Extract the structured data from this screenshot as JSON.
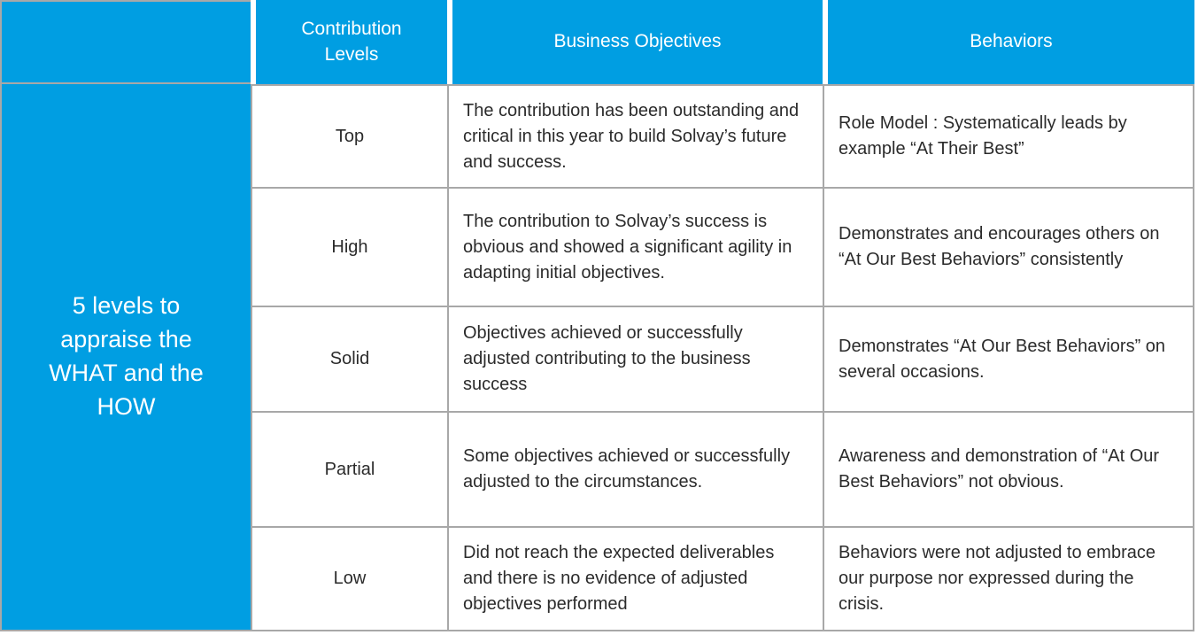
{
  "colors": {
    "header_blue": "#009ee2",
    "border_grey": "#a8a8a8",
    "body_text": "#2b2b2b",
    "header_text": "#ffffff"
  },
  "table": {
    "row_header": "5 levels to appraise the WHAT and the HOW",
    "columns": [
      "Contribution Levels",
      "Business Objectives",
      "Behaviors"
    ],
    "rows": [
      {
        "level": "Top",
        "business_objectives": "The contribution has been outstanding and critical in this year to build Solvay’s future and success.",
        "behaviors": "Role Model : Systematically leads by example “At Their Best”"
      },
      {
        "level": "High",
        "business_objectives": "The contribution to Solvay’s success is obvious and showed a significant agility in adapting initial objectives.",
        "behaviors": "Demonstrates and encourages others on “At Our Best Behaviors” consistently"
      },
      {
        "level": "Solid",
        "business_objectives": "Objectives achieved or successfully adjusted contributing to the business success",
        "behaviors": "Demonstrates “At Our Best Behaviors” on several occasions."
      },
      {
        "level": "Partial",
        "business_objectives": "Some objectives achieved or successfully adjusted to the circumstances.",
        "behaviors": "Awareness and demonstration of “At Our Best Behaviors” not obvious."
      },
      {
        "level": "Low",
        "business_objectives": "Did not reach the expected deliverables and there is no evidence of adjusted objectives performed",
        "behaviors": "Behaviors were not adjusted to embrace our purpose nor expressed during the crisis."
      }
    ]
  }
}
